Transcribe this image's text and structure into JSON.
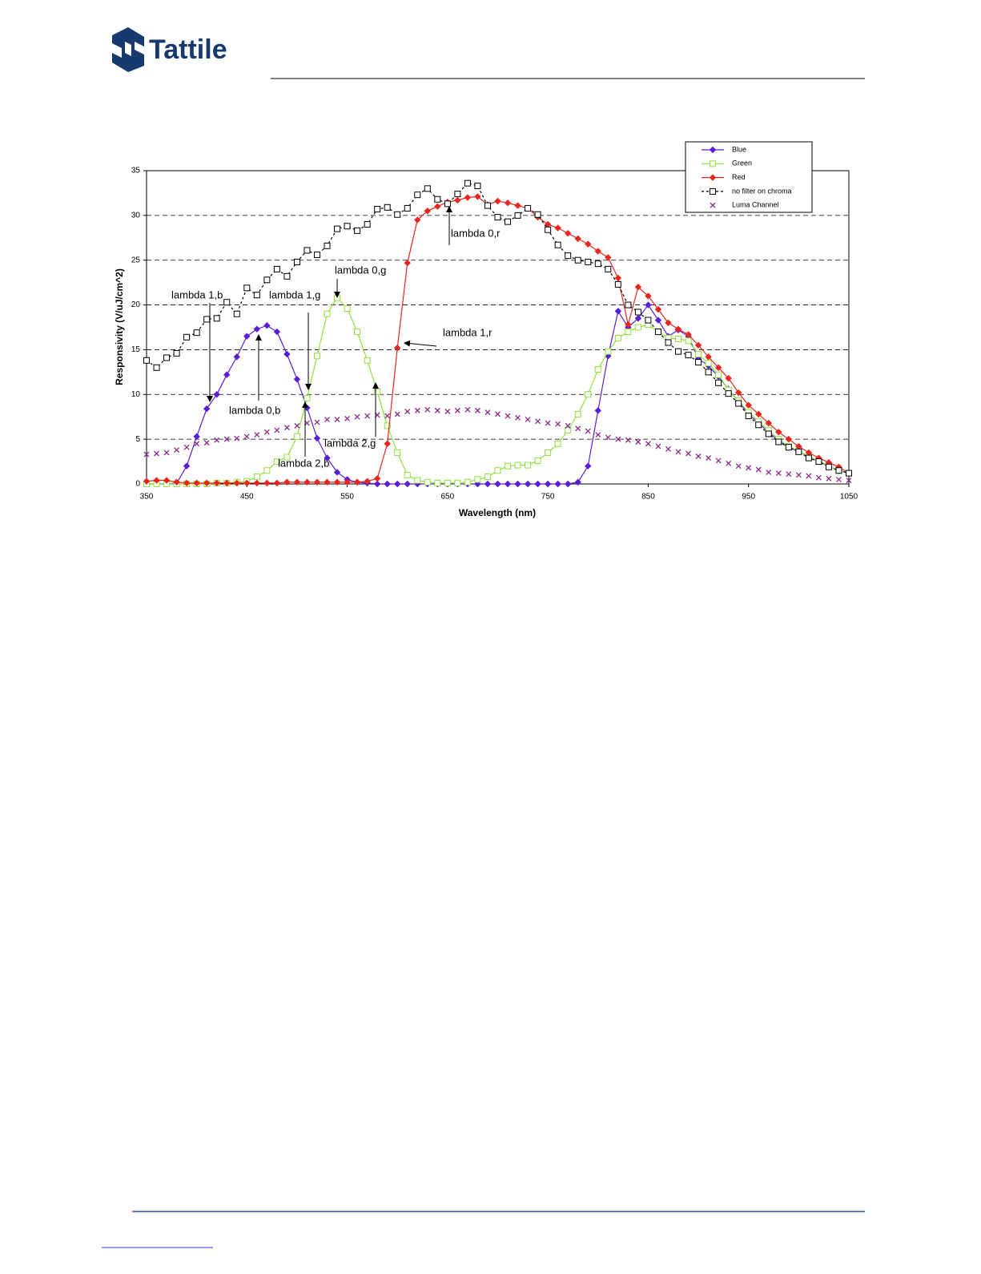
{
  "header": {
    "logo": "Tattile"
  },
  "chart_data": {
    "type": "line",
    "x_label": "Wavelength (nm)",
    "y_label": "Responsivity (V/uJ/cm^2)",
    "xlim": [
      350,
      1050
    ],
    "xticks": [
      350,
      450,
      550,
      650,
      750,
      850,
      950,
      1050
    ],
    "ylim": [
      0,
      35
    ],
    "yticks": [
      0,
      5,
      10,
      15,
      20,
      25,
      30,
      35
    ],
    "grid": true,
    "legend": "upper-right",
    "x": [
      350,
      360,
      370,
      380,
      390,
      400,
      410,
      420,
      430,
      440,
      450,
      460,
      470,
      480,
      490,
      500,
      510,
      520,
      530,
      540,
      550,
      560,
      570,
      580,
      590,
      600,
      610,
      620,
      630,
      640,
      650,
      660,
      670,
      680,
      690,
      700,
      710,
      720,
      730,
      740,
      750,
      760,
      770,
      780,
      790,
      800,
      810,
      820,
      830,
      840,
      850,
      860,
      870,
      880,
      890,
      900,
      910,
      920,
      930,
      940,
      950,
      960,
      970,
      980,
      990,
      1000,
      1010,
      1020,
      1030,
      1040,
      1050
    ],
    "series": [
      {
        "name": "Blue",
        "color": "#5a1ed6",
        "marker": "diamond",
        "line_style": "solid",
        "values": [
          0,
          0,
          0,
          0.1,
          2,
          5.3,
          8.4,
          10,
          12.2,
          14.2,
          16.5,
          17.3,
          17.7,
          17,
          14.5,
          11.7,
          8.5,
          5.1,
          2.9,
          1.3,
          0.5,
          0.2,
          0.1,
          0,
          0,
          0,
          0,
          0,
          0,
          0,
          0,
          0,
          0,
          0,
          0,
          0,
          0,
          0,
          0,
          0,
          0,
          0,
          0,
          0.2,
          2,
          8.2,
          14.3,
          19.3,
          17.5,
          18.5,
          20,
          18.3,
          16.5,
          17.2,
          16.5,
          14,
          13.2,
          12,
          10.6,
          9.2,
          7.8,
          6.8,
          5.8,
          4.8,
          4.1,
          3.6,
          3.1,
          2.5,
          2,
          1.5,
          1.2
        ]
      },
      {
        "name": "Green",
        "color": "#8fe03a",
        "marker": "square",
        "line_style": "solid",
        "values": [
          0,
          0,
          0,
          0,
          0,
          0,
          0,
          0.1,
          0.1,
          0.2,
          0.3,
          0.8,
          1.5,
          2.5,
          3,
          5.3,
          9.6,
          14.3,
          19,
          20.8,
          19.6,
          17,
          13.8,
          10.3,
          6.5,
          3.5,
          1,
          0.4,
          0.2,
          0.1,
          0.1,
          0.1,
          0.2,
          0.5,
          0.8,
          1.5,
          2,
          2.1,
          2.1,
          2.6,
          3.5,
          4.5,
          6,
          7.8,
          10,
          12.8,
          14.8,
          16.3,
          17,
          17.5,
          17.8,
          17,
          16.3,
          16.2,
          16,
          14.5,
          13.5,
          12.2,
          10.5,
          9.3,
          8,
          7,
          6,
          5,
          4.2,
          3.7,
          3,
          2.6,
          2,
          1.5,
          1.2
        ]
      },
      {
        "name": "Red",
        "color": "#e8261e",
        "marker": "diamond",
        "line_style": "solid",
        "values": [
          0.3,
          0.4,
          0.4,
          0.2,
          0.1,
          0.1,
          0.1,
          0.1,
          0.1,
          0.1,
          0.1,
          0.1,
          0.1,
          0.1,
          0.2,
          0.2,
          0.2,
          0.2,
          0.2,
          0.2,
          0.2,
          0.2,
          0.3,
          0.6,
          4.5,
          15.2,
          24.7,
          29.5,
          30.5,
          31,
          31.5,
          31.7,
          32,
          32.1,
          31.2,
          31.6,
          31.4,
          31.1,
          30.8,
          29.8,
          29,
          28.6,
          28,
          27.4,
          26.8,
          26,
          25.3,
          23,
          17.8,
          22,
          21,
          19.5,
          18,
          17.3,
          16.7,
          15.5,
          14.2,
          13,
          11.8,
          10.2,
          8.8,
          7.8,
          6.8,
          5.8,
          5,
          4.2,
          3.5,
          2.9,
          2.4,
          1.9,
          1.2
        ]
      },
      {
        "name": "no filter on chroma",
        "color": "#000000",
        "marker": "square",
        "line_style": "dashed",
        "values": [
          13.8,
          13,
          14.1,
          14.6,
          16.4,
          16.9,
          18.4,
          18.5,
          20.3,
          19,
          21.9,
          21.1,
          22.8,
          24,
          23.2,
          24.8,
          26.1,
          25.6,
          26.6,
          28.5,
          28.8,
          28.3,
          29,
          30.7,
          30.9,
          30.1,
          30.8,
          32.3,
          33,
          31.8,
          31.3,
          32.4,
          33.6,
          33.3,
          31.1,
          29.8,
          29.3,
          30,
          30.8,
          30.1,
          28.4,
          26.7,
          25.5,
          25,
          24.8,
          24.6,
          24,
          22.3,
          20,
          19.2,
          18.3,
          17,
          15.8,
          14.8,
          14.4,
          13.6,
          12.5,
          11.3,
          10.1,
          9,
          7.6,
          6.6,
          5.6,
          4.7,
          4.1,
          3.6,
          2.9,
          2.5,
          1.9,
          1.5,
          1.2
        ]
      },
      {
        "name": "Luma Channel",
        "color": "#8b2a86",
        "marker": "x",
        "line_style": "none",
        "values": [
          3.3,
          3.4,
          3.5,
          3.8,
          4.1,
          4.5,
          4.6,
          4.9,
          5,
          5.1,
          5.3,
          5.5,
          5.8,
          6,
          6.3,
          6.5,
          6.8,
          6.9,
          7.2,
          7.2,
          7.3,
          7.5,
          7.6,
          7.7,
          7.6,
          7.8,
          8.1,
          8.2,
          8.3,
          8.2,
          8.1,
          8.2,
          8.3,
          8.2,
          8,
          7.8,
          7.6,
          7.4,
          7.2,
          7,
          6.8,
          6.7,
          6.5,
          6.2,
          5.9,
          5.5,
          5.2,
          5,
          4.9,
          4.7,
          4.5,
          4.2,
          3.9,
          3.6,
          3.4,
          3.1,
          2.9,
          2.6,
          2.3,
          2,
          1.8,
          1.6,
          1.3,
          1.2,
          1.1,
          1,
          0.9,
          0.7,
          0.6,
          0.5,
          0.4
        ]
      }
    ],
    "annotations": [
      "lambda 0,r",
      "lambda 1,r",
      "lambda 0,g",
      "lambda 1,g",
      "lambda 1,b",
      "lambda 0,b",
      "lambda 2,b",
      "lambda 2,g"
    ]
  }
}
